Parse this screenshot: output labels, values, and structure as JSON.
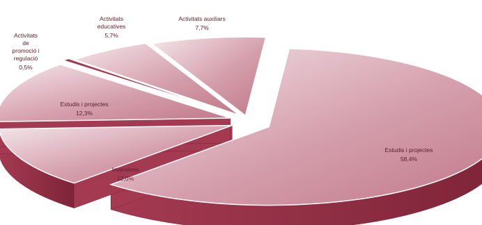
{
  "chart_data": {
    "type": "pie",
    "style": "3d-exploded",
    "title": "",
    "colors": {
      "top_light": "#f4e6ea",
      "top_mid": "#d59fad",
      "top_dark": "#c07888",
      "side": "#a43a52",
      "side_dark": "#7e2438",
      "edge": "#ffffff",
      "label": "#5a1e2c"
    },
    "slices": [
      {
        "label": "Estudis i projectes",
        "value": 58.4,
        "value_label": "58,4%"
      },
      {
        "label": "Inversions",
        "value": 12.0,
        "value_label": "12,0%"
      },
      {
        "label": "Estudis i projectes",
        "value": 12.3,
        "value_label": "12,3%"
      },
      {
        "label": "Activitats de promoció i regulació",
        "value": 0.5,
        "value_label": "0,5%"
      },
      {
        "label": "Activitats educatives",
        "value": 5.7,
        "value_label": "5,7%"
      },
      {
        "label": "Activitats auxiliars",
        "value": 7.7,
        "value_label": "7,7%"
      }
    ]
  }
}
